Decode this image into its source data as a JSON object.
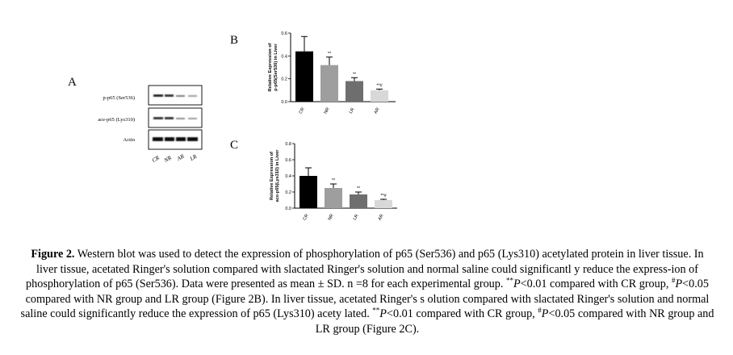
{
  "panels": {
    "a": "A",
    "b": "B",
    "c": "C"
  },
  "blot": {
    "rows": [
      "p-p65 (Ser536)",
      "ace-p65 (Lys310)",
      "Actin"
    ],
    "lanes": [
      "CR",
      "NR",
      "AR",
      "LR"
    ]
  },
  "chart_data": [
    {
      "type": "bar",
      "ylabel_line1": "Relative Expression of",
      "ylabel_line2": "p-p65(Ser536) in Liver",
      "ylim": [
        0,
        0.6
      ],
      "yticks": [
        "0.0",
        "0.2",
        "0.4",
        "0.6"
      ],
      "categories": [
        "CR",
        "NR",
        "LR",
        "AR"
      ],
      "values": [
        0.44,
        0.32,
        0.18,
        0.1
      ],
      "errors": [
        0.13,
        0.07,
        0.03,
        0.01
      ],
      "annotations": [
        "",
        "**",
        "**",
        "**#"
      ],
      "colors": [
        "#000000",
        "#9e9e9e",
        "#6e6e6e",
        "#d8d8d8"
      ]
    },
    {
      "type": "bar",
      "ylabel_line1": "Relative Expression of",
      "ylabel_line2": "ace-p65(Lys310) in Liver",
      "ylim": [
        0,
        0.8
      ],
      "yticks": [
        "0.0",
        "0.2",
        "0.4",
        "0.6",
        "0.8"
      ],
      "categories": [
        "CR",
        "NR",
        "LR",
        "AR"
      ],
      "values": [
        0.4,
        0.25,
        0.17,
        0.1
      ],
      "errors": [
        0.1,
        0.05,
        0.03,
        0.01
      ],
      "annotations": [
        "",
        "**",
        "**",
        "**#"
      ],
      "colors": [
        "#000000",
        "#9e9e9e",
        "#6e6e6e",
        "#d8d8d8"
      ]
    }
  ],
  "caption": {
    "label": "Figure 2.",
    "text1": " Western blot was used to detect the expression of phosphorylation of p65 (Ser536) and p65 (Lys310) acetylated protein in liver tissue. In liver tissue, acetated Ringer's solution compared with slactated Ringer's solution and normal saline could significantl y reduce the express-ion of phosphorylation of p65 (Ser536). Data were presented as mean ± SD. n =8 for each experimental group. ",
    "sig_dbl": "**",
    "p_italic": "P",
    "text2": "<0.01 compared with CR group, ",
    "sig_hash": "#",
    "text3": "<0.05 compared with NR group and LR group (Figure 2B). In liver tissue, acetated Ringer's s olution compared with slactated Ringer's solution and normal saline could significantly reduce the expression of p65 (Lys310) acety lated. ",
    "text4": "<0.01 compared with CR group, ",
    "text5": "<0.05 compared with NR group and LR group (Figure 2C)."
  }
}
